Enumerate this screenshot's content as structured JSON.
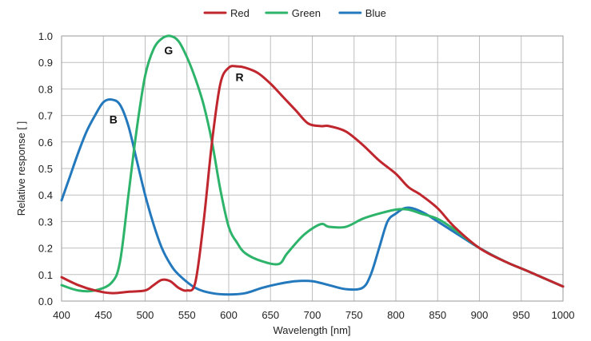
{
  "chart_data": {
    "type": "line",
    "title": "",
    "xlabel": "Wavelength [nm]",
    "ylabel": "Relative response [ ]",
    "xlim": [
      400,
      1000
    ],
    "ylim": [
      0,
      1.0
    ],
    "x_ticks": [
      400,
      450,
      500,
      550,
      600,
      650,
      700,
      750,
      800,
      850,
      900,
      950,
      1000
    ],
    "y_ticks": [
      "0.0",
      "0.1",
      "0.2",
      "0.3",
      "0.4",
      "0.5",
      "0.6",
      "0.7",
      "0.8",
      "0.9",
      "1.0"
    ],
    "grid": true,
    "legend_position": "top-center",
    "series": [
      {
        "name": "Red",
        "color": "#c0262d",
        "points": [
          [
            400,
            0.09
          ],
          [
            420,
            0.06
          ],
          [
            440,
            0.04
          ],
          [
            460,
            0.03
          ],
          [
            480,
            0.035
          ],
          [
            500,
            0.04
          ],
          [
            510,
            0.06
          ],
          [
            520,
            0.08
          ],
          [
            530,
            0.075
          ],
          [
            540,
            0.05
          ],
          [
            550,
            0.04
          ],
          [
            560,
            0.07
          ],
          [
            570,
            0.3
          ],
          [
            580,
            0.6
          ],
          [
            590,
            0.82
          ],
          [
            600,
            0.88
          ],
          [
            610,
            0.885
          ],
          [
            620,
            0.88
          ],
          [
            635,
            0.86
          ],
          [
            650,
            0.82
          ],
          [
            665,
            0.77
          ],
          [
            680,
            0.72
          ],
          [
            695,
            0.67
          ],
          [
            710,
            0.66
          ],
          [
            720,
            0.66
          ],
          [
            740,
            0.64
          ],
          [
            760,
            0.59
          ],
          [
            780,
            0.53
          ],
          [
            800,
            0.48
          ],
          [
            815,
            0.43
          ],
          [
            830,
            0.4
          ],
          [
            850,
            0.35
          ],
          [
            870,
            0.28
          ],
          [
            900,
            0.2
          ],
          [
            930,
            0.15
          ],
          [
            960,
            0.11
          ],
          [
            1000,
            0.055
          ]
        ]
      },
      {
        "name": "Green",
        "color": "#2db46a",
        "points": [
          [
            400,
            0.06
          ],
          [
            420,
            0.04
          ],
          [
            440,
            0.04
          ],
          [
            460,
            0.07
          ],
          [
            470,
            0.15
          ],
          [
            480,
            0.4
          ],
          [
            490,
            0.65
          ],
          [
            500,
            0.85
          ],
          [
            510,
            0.95
          ],
          [
            520,
            0.99
          ],
          [
            530,
            1.0
          ],
          [
            540,
            0.98
          ],
          [
            550,
            0.92
          ],
          [
            560,
            0.84
          ],
          [
            570,
            0.74
          ],
          [
            580,
            0.6
          ],
          [
            590,
            0.42
          ],
          [
            600,
            0.28
          ],
          [
            610,
            0.22
          ],
          [
            620,
            0.18
          ],
          [
            640,
            0.15
          ],
          [
            660,
            0.14
          ],
          [
            670,
            0.18
          ],
          [
            690,
            0.25
          ],
          [
            710,
            0.29
          ],
          [
            720,
            0.28
          ],
          [
            740,
            0.28
          ],
          [
            760,
            0.31
          ],
          [
            780,
            0.33
          ],
          [
            800,
            0.345
          ],
          [
            815,
            0.345
          ],
          [
            830,
            0.33
          ],
          [
            850,
            0.31
          ],
          [
            870,
            0.27
          ],
          [
            900,
            0.2
          ],
          [
            930,
            0.15
          ],
          [
            960,
            0.11
          ],
          [
            1000,
            0.055
          ]
        ]
      },
      {
        "name": "Blue",
        "color": "#2479bd",
        "points": [
          [
            400,
            0.38
          ],
          [
            410,
            0.47
          ],
          [
            420,
            0.56
          ],
          [
            430,
            0.64
          ],
          [
            440,
            0.7
          ],
          [
            450,
            0.75
          ],
          [
            460,
            0.76
          ],
          [
            470,
            0.74
          ],
          [
            480,
            0.66
          ],
          [
            490,
            0.53
          ],
          [
            500,
            0.4
          ],
          [
            510,
            0.29
          ],
          [
            520,
            0.2
          ],
          [
            530,
            0.14
          ],
          [
            540,
            0.1
          ],
          [
            560,
            0.05
          ],
          [
            580,
            0.03
          ],
          [
            600,
            0.025
          ],
          [
            620,
            0.03
          ],
          [
            640,
            0.05
          ],
          [
            660,
            0.065
          ],
          [
            680,
            0.075
          ],
          [
            700,
            0.075
          ],
          [
            720,
            0.06
          ],
          [
            740,
            0.045
          ],
          [
            760,
            0.05
          ],
          [
            770,
            0.1
          ],
          [
            780,
            0.2
          ],
          [
            790,
            0.3
          ],
          [
            800,
            0.33
          ],
          [
            810,
            0.35
          ],
          [
            820,
            0.35
          ],
          [
            835,
            0.33
          ],
          [
            850,
            0.3
          ],
          [
            870,
            0.26
          ],
          [
            900,
            0.2
          ],
          [
            930,
            0.15
          ],
          [
            960,
            0.11
          ],
          [
            1000,
            0.055
          ]
        ]
      }
    ],
    "annotations": [
      {
        "text": "B",
        "x": 462,
        "y": 0.67
      },
      {
        "text": "G",
        "x": 528,
        "y": 0.93
      },
      {
        "text": "R",
        "x": 613,
        "y": 0.83
      }
    ]
  }
}
